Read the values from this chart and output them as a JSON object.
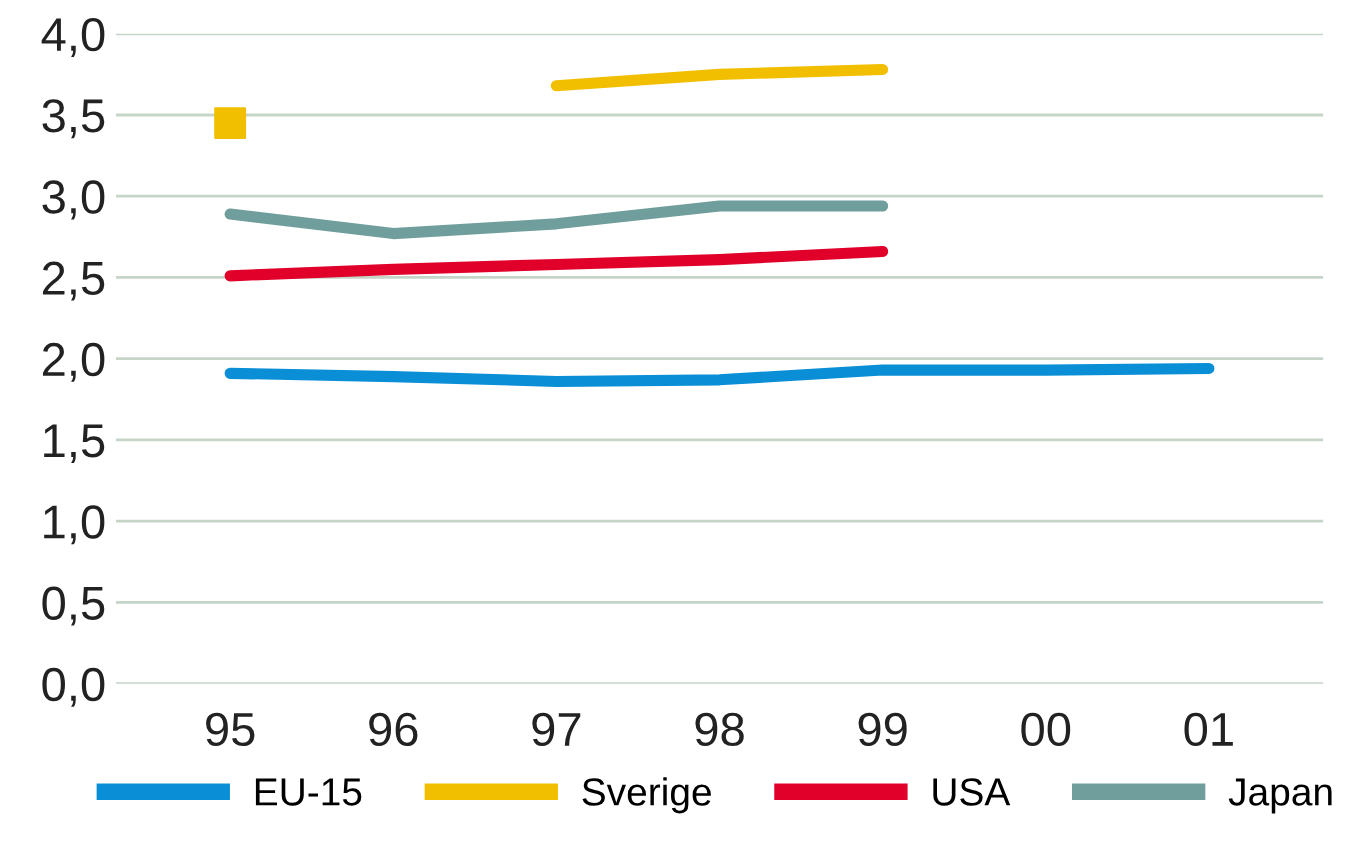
{
  "chart_data": {
    "type": "line",
    "categories": [
      "95",
      "96",
      "97",
      "98",
      "99",
      "00",
      "01"
    ],
    "series": [
      {
        "name": "EU-15",
        "color": "#0a8fd6",
        "values": [
          1.91,
          1.89,
          1.86,
          1.87,
          1.93,
          1.93,
          1.94
        ]
      },
      {
        "name": "Sverige",
        "color": "#f2bf00",
        "values": [
          null,
          null,
          3.68,
          3.75,
          3.78,
          null,
          null
        ]
      },
      {
        "type": "scatter",
        "color": "#f2bf00",
        "marker": "square",
        "values": [
          3.45,
          null,
          null,
          null,
          null,
          null,
          null
        ]
      },
      {
        "name": "USA",
        "color": "#e0002a",
        "values": [
          2.51,
          2.55,
          2.58,
          2.61,
          2.66,
          null,
          null
        ]
      },
      {
        "name": "Japan",
        "color": "#6f9e9c",
        "values": [
          2.89,
          2.77,
          2.83,
          2.94,
          2.94,
          null,
          null
        ]
      }
    ],
    "ylim": [
      0,
      4
    ],
    "yticks": [
      {
        "value": 0,
        "label": "0,0"
      },
      {
        "value": 0.5,
        "label": "0,5"
      },
      {
        "value": 1,
        "label": "1,0"
      },
      {
        "value": 1.5,
        "label": "1,5"
      },
      {
        "value": 2,
        "label": "2,0"
      },
      {
        "value": 2.5,
        "label": "2,5"
      },
      {
        "value": 3,
        "label": "3,0"
      },
      {
        "value": 3.5,
        "label": "3,5"
      },
      {
        "value": 4,
        "label": "4,0"
      }
    ],
    "grid": "y",
    "legend": "bottom",
    "line_style": "solid"
  }
}
